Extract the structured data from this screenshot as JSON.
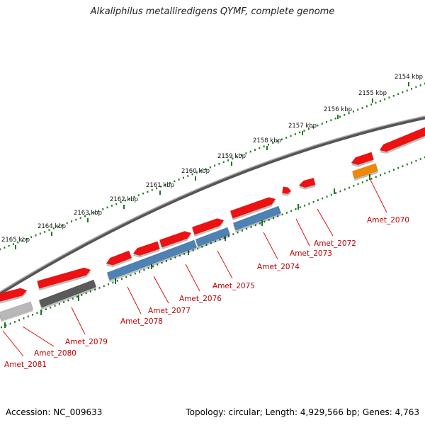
{
  "title": "Alkaliphilus metalliredigens QYMF, complete genome",
  "footer": {
    "accession": "Accession: NC_009633",
    "summary": "Topology: circular; Length: 4,929,566 bp; Genes: 4,763"
  },
  "colors": {
    "cds_red": "#ee1111",
    "gene_blue": "#4e82b4",
    "gene_dark": "#5a5a5a",
    "gene_light": "#b8b8b8",
    "gene_orange": "#f08800",
    "label_red": "#c00000",
    "tick_green": "#1f7a1f",
    "backbone": "#7a7a7a"
  },
  "scale": {
    "ticks": [
      "2154 kbp",
      "2155 kbp",
      "2156 kbp",
      "2157 kbp",
      "2158 kbp",
      "2159 kbp",
      "2160 kbp",
      "2161 kbp",
      "2162 kbp",
      "2163 kbp",
      "2164 kbp",
      "2165 kbp"
    ]
  },
  "genes": [
    {
      "label": "Amet_2070"
    },
    {
      "label": "Amet_2072"
    },
    {
      "label": "Amet_2073"
    },
    {
      "label": "Amet_2074"
    },
    {
      "label": "Amet_2075"
    },
    {
      "label": "Amet_2076"
    },
    {
      "label": "Amet_2077"
    },
    {
      "label": "Amet_2078"
    },
    {
      "label": "Amet_2079"
    },
    {
      "label": "Amet_2080"
    },
    {
      "label": "Amet_2081"
    }
  ]
}
